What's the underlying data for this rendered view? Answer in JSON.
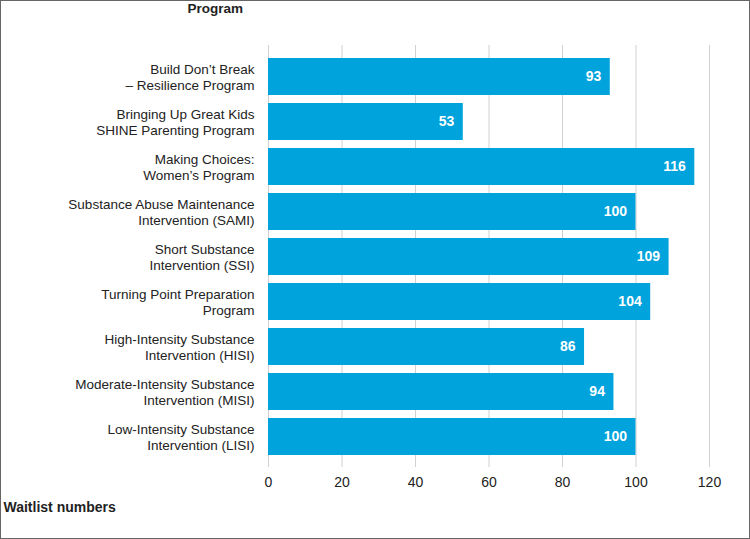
{
  "chart_data": {
    "type": "bar",
    "orientation": "horizontal",
    "ylabel": "Program",
    "xlabel": "Waitlist numbers",
    "categories": [
      "Build Don’t Break\n– Resilience Program",
      "Bringing Up Great Kids\nSHINE Parenting Program",
      "Making Choices:\nWomen’s Program",
      "Substance Abuse Maintenance\nIntervention (SAMI)",
      "Short Substance\nIntervention (SSI)",
      "Turning Point Preparation\nProgram",
      "High-Intensity Substance\nIntervention (HISI)",
      "Moderate-Intensity Substance\nIntervention (MISI)",
      "Low-Intensity Substance\nIntervention (LISI)"
    ],
    "values": [
      93,
      53,
      116,
      100,
      109,
      104,
      86,
      94,
      100
    ],
    "color": "#00a3dc",
    "xlim": [
      0,
      120
    ],
    "xticks": [
      0,
      20,
      40,
      60,
      80,
      100,
      120
    ],
    "grid": true,
    "data_labels": true
  }
}
